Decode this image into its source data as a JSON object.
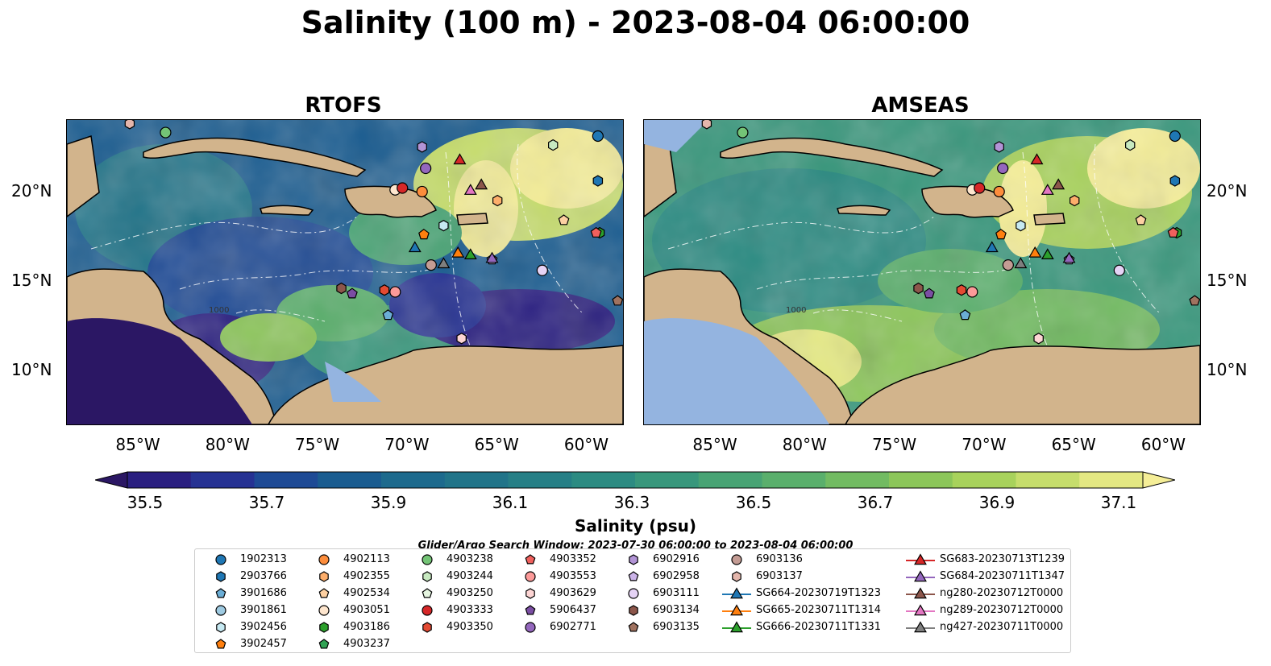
{
  "title": "Salinity (100 m) - 2023-08-04 06:00:00",
  "panels": [
    {
      "name": "RTOFS"
    },
    {
      "name": "AMSEAS"
    }
  ],
  "axes": {
    "x_ticks": [
      "85°W",
      "80°W",
      "75°W",
      "70°W",
      "65°W",
      "60°W"
    ],
    "y_ticks": [
      "20°N",
      "15°N",
      "10°N"
    ],
    "contour_labels": [
      "1000",
      "1000"
    ]
  },
  "colorbar": {
    "label": "Salinity (psu)",
    "ticks": [
      "35.5",
      "35.7",
      "35.9",
      "36.1",
      "36.3",
      "36.5",
      "36.7",
      "36.9",
      "37.1"
    ],
    "colors": [
      "#2b1764",
      "#2a1f80",
      "#263293",
      "#1e4a95",
      "#1a5c90",
      "#1d6a8d",
      "#217489",
      "#267f86",
      "#2c8b82",
      "#38977c",
      "#48a374",
      "#5aaf6c",
      "#72bb62",
      "#8cc65a",
      "#a8d25c",
      "#c6dd6c",
      "#e4e883",
      "#f5ee97"
    ],
    "extend": "both"
  },
  "search_window": "Glider/Argo Search Window: 2023-07-30 06:00:00 to 2023-08-04 06:00:00",
  "legend": [
    {
      "label": "1902313",
      "marker": "circle",
      "color": "#1f77b4"
    },
    {
      "label": "2903766",
      "marker": "hexagon",
      "color": "#1f77b4"
    },
    {
      "label": "3901686",
      "marker": "pentagon",
      "color": "#6baed6"
    },
    {
      "label": "3901861",
      "marker": "circle",
      "color": "#9ecae1"
    },
    {
      "label": "3902456",
      "marker": "hexagon",
      "color": "#c6e9f2"
    },
    {
      "label": "3902457",
      "marker": "pentagon",
      "color": "#ff7f0e"
    },
    {
      "label": "4902113",
      "marker": "circle",
      "color": "#fd8d3c"
    },
    {
      "label": "4902355",
      "marker": "hexagon",
      "color": "#fdae6b"
    },
    {
      "label": "4902534",
      "marker": "pentagon",
      "color": "#fdd0a2"
    },
    {
      "label": "4903051",
      "marker": "circle",
      "color": "#fee6ce"
    },
    {
      "label": "4903186",
      "marker": "hexagon",
      "color": "#2ca02c"
    },
    {
      "label": "4903237",
      "marker": "pentagon",
      "color": "#31a354"
    },
    {
      "label": "4903238",
      "marker": "circle",
      "color": "#74c476"
    },
    {
      "label": "4903244",
      "marker": "hexagon",
      "color": "#c7e9c0"
    },
    {
      "label": "4903250",
      "marker": "pentagon",
      "color": "#e5f5e0"
    },
    {
      "label": "4903333",
      "marker": "circle",
      "color": "#d62728"
    },
    {
      "label": "4903350",
      "marker": "hexagon",
      "color": "#e34a33"
    },
    {
      "label": "4903352",
      "marker": "pentagon",
      "color": "#f0605d"
    },
    {
      "label": "4903553",
      "marker": "circle",
      "color": "#fc9a99"
    },
    {
      "label": "4903629",
      "marker": "hexagon",
      "color": "#fdd5d4"
    },
    {
      "label": "5906437",
      "marker": "pentagon",
      "color": "#7b4ea3"
    },
    {
      "label": "6902771",
      "marker": "circle",
      "color": "#9467bd"
    },
    {
      "label": "6902916",
      "marker": "hexagon",
      "color": "#b294d6"
    },
    {
      "label": "6902958",
      "marker": "pentagon",
      "color": "#cbb3e8"
    },
    {
      "label": "6903111",
      "marker": "circle",
      "color": "#e5d3f5"
    },
    {
      "label": "6903134",
      "marker": "hexagon",
      "color": "#8c564b"
    },
    {
      "label": "6903135",
      "marker": "pentagon",
      "color": "#a0725f"
    },
    {
      "label": "6903136",
      "marker": "circle",
      "color": "#c49c94"
    },
    {
      "label": "6903137",
      "marker": "hexagon",
      "color": "#e4b6ac"
    },
    {
      "label": "SG664-20230719T1323",
      "marker": "triangle",
      "color": "#1f77b4"
    },
    {
      "label": "SG665-20230711T1314",
      "marker": "triangle",
      "color": "#ff7f0e"
    },
    {
      "label": "SG666-20230711T1331",
      "marker": "triangle",
      "color": "#2ca02c"
    },
    {
      "label": "SG683-20230713T1239",
      "marker": "triangle",
      "color": "#d62728"
    },
    {
      "label": "SG684-20230711T1347",
      "marker": "triangle",
      "color": "#9467bd"
    },
    {
      "label": "ng280-20230712T0000",
      "marker": "triangle",
      "color": "#8c564b"
    },
    {
      "label": "ng289-20230712T0000",
      "marker": "triangle",
      "color": "#e377c2"
    },
    {
      "label": "ng427-20230711T0000",
      "marker": "triangle",
      "color": "#7f7f7f"
    }
  ],
  "map_colors": {
    "land": "#d2b48c",
    "ocean": "#94b4e0",
    "border": "#000000",
    "river": "#9ab2d8"
  },
  "observations": [
    {
      "id": "1902313",
      "lon": -59.4,
      "lat": 23.1
    },
    {
      "id": "2903766",
      "lon": -59.4,
      "lat": 20.6
    },
    {
      "id": "3901686",
      "lon": -71.1,
      "lat": 13.1
    },
    {
      "id": "3902456",
      "lon": -68.0,
      "lat": 18.1
    },
    {
      "id": "3902457",
      "lon": -69.1,
      "lat": 17.6
    },
    {
      "id": "4902113",
      "lon": -69.2,
      "lat": 20.0
    },
    {
      "id": "4902355",
      "lon": -65.0,
      "lat": 19.5
    },
    {
      "id": "4902534",
      "lon": -61.3,
      "lat": 18.4
    },
    {
      "id": "4903051",
      "lon": -70.7,
      "lat": 20.1
    },
    {
      "id": "4903186",
      "lon": -59.3,
      "lat": 17.7
    },
    {
      "id": "4903238",
      "lon": -83.5,
      "lat": 23.3
    },
    {
      "id": "4903244",
      "lon": -61.9,
      "lat": 22.6
    },
    {
      "id": "4903333",
      "lon": -70.3,
      "lat": 20.2
    },
    {
      "id": "4903350",
      "lon": -71.3,
      "lat": 14.5
    },
    {
      "id": "4903352",
      "lon": -59.5,
      "lat": 17.7
    },
    {
      "id": "4903553",
      "lon": -70.7,
      "lat": 14.4
    },
    {
      "id": "4903629",
      "lon": -67.0,
      "lat": 11.8
    },
    {
      "id": "5906437",
      "lon": -73.1,
      "lat": 14.3
    },
    {
      "id": "6902771",
      "lon": -69.0,
      "lat": 21.3
    },
    {
      "id": "6902916",
      "lon": -69.2,
      "lat": 22.5
    },
    {
      "id": "6902958",
      "lon": -65.3,
      "lat": 16.2
    },
    {
      "id": "6903111",
      "lon": -62.5,
      "lat": 15.6
    },
    {
      "id": "6903134",
      "lon": -73.7,
      "lat": 14.6
    },
    {
      "id": "6903135",
      "lon": -58.3,
      "lat": 13.9
    },
    {
      "id": "6903136",
      "lon": -68.7,
      "lat": 15.9
    },
    {
      "id": "6903137",
      "lon": -85.5,
      "lat": 23.8
    },
    {
      "id": "SG664-20230719T1323",
      "lon": -69.6,
      "lat": 16.9
    },
    {
      "id": "SG665-20230711T1314",
      "lon": -67.2,
      "lat": 16.6
    },
    {
      "id": "SG666-20230711T1331",
      "lon": -66.5,
      "lat": 16.5
    },
    {
      "id": "SG683-20230713T1239",
      "lon": -67.1,
      "lat": 21.8
    },
    {
      "id": "SG684-20230711T1347",
      "lon": -65.3,
      "lat": 16.3
    },
    {
      "id": "ng280-20230712T0000",
      "lon": -65.9,
      "lat": 20.4
    },
    {
      "id": "ng289-20230712T0000",
      "lon": -66.5,
      "lat": 20.1
    },
    {
      "id": "ng427-20230711T0000",
      "lon": -68.0,
      "lat": 16.0
    }
  ]
}
